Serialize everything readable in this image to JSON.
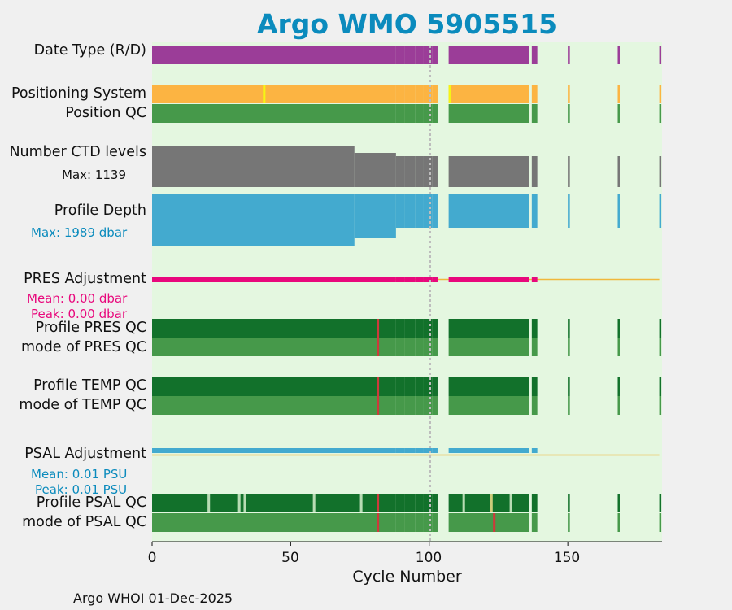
{
  "title": "Argo WMO 5905515",
  "footer": "Argo WHOI 01-Dec-2025",
  "row_labels": {
    "date_type": "Date Type (R/D)",
    "positioning_system": "Positioning System",
    "position_qc": "Position QC",
    "ctd_levels": "Number CTD levels",
    "ctd_max": "Max: 1139",
    "profile_depth": "Profile Depth",
    "depth_max": "Max: 1989 dbar",
    "pres_adjustment": "PRES Adjustment",
    "pres_mean": "Mean: 0.00 dbar",
    "pres_peak": "Peak: 0.00 dbar",
    "profile_pres_qc": "Profile PRES QC",
    "mode_pres_qc": "mode of PRES QC",
    "profile_temp_qc": "Profile TEMP QC",
    "mode_temp_qc": "mode of TEMP QC",
    "psal_adjustment": "PSAL Adjustment",
    "psal_mean": "Mean: 0.01 PSU",
    "psal_peak": "Peak: 0.01 PSU",
    "profile_psal_qc": "Profile PSAL QC",
    "mode_psal_qc": "mode of PSAL QC"
  },
  "colors": {
    "title": "#0b8bbd",
    "plot_bg": "#e4f7e0",
    "date_type": "#9b3d98",
    "positioning": "#fcb442",
    "positioning_alt": "#f5f514",
    "position_qc": "#46994a",
    "ctd_levels": "#767676",
    "profile_depth": "#43aacf",
    "pres_adjustment": "#e8087c",
    "zero_line": "#f0b83c",
    "qc_profile": "#12712b",
    "qc_mode": "#46994a",
    "qc_bad": "#cc3b3b",
    "qc_light": "#b8dcb4",
    "psal_adjustment": "#43aacf",
    "highlight": "#cdcc7a",
    "depth_label": "#0b8bbd",
    "pres_label": "#e8087c",
    "psal_label": "#0b8bbd"
  },
  "chart_data": {
    "type": "table",
    "title": "Argo WMO 5905515",
    "xlabel": "Cycle Number",
    "ylabel": "",
    "xlim": [
      0,
      184
    ],
    "x_ticks": [
      0,
      50,
      100,
      150
    ],
    "x_tick_labels": [
      "0",
      "50",
      "100",
      "150"
    ],
    "reference_line_cycle": 100,
    "cycles": {
      "main_ranges": [
        [
          0,
          87
        ],
        [
          88,
          90
        ],
        [
          91,
          94
        ],
        [
          95,
          97
        ],
        [
          98,
          100
        ],
        [
          101,
          102
        ],
        [
          107,
          135
        ],
        [
          137,
          138
        ]
      ],
      "sparse": [
        150,
        168,
        183
      ]
    },
    "ctd_levels_max": 1139,
    "ctd_levels_step_down_cycle": 73,
    "profile_depth_max_dbar": 1989,
    "profile_depth_step_down_cycle": 73,
    "position_system_alt_cycles": [
      40,
      107
    ],
    "pres_adjustment": {
      "mean": 0.0,
      "peak": 0.0,
      "unit": "dbar"
    },
    "psal_adjustment": {
      "mean": 0.01,
      "peak": 0.01,
      "unit": "PSU"
    },
    "qc_bad_cycle_pres_temp": 81,
    "psal_qc_flagged_cycles": [
      20,
      31,
      33,
      58,
      75,
      81,
      112,
      122,
      129
    ],
    "psal_mode_bad_cycles": [
      81,
      123
    ]
  }
}
